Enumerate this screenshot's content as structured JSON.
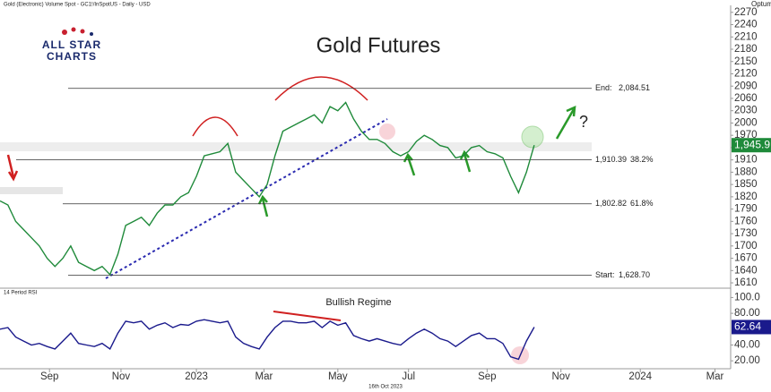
{
  "chart_data": {
    "type": "line",
    "title": "Gold Futures",
    "subtitle": "Gold (Electronic) Volume Spot - GC1!/InSpotUS - Daily - USD",
    "logo": "ALL STAR CHARTS",
    "brand": "Optuma",
    "date_label": "16th Oct 2023",
    "xticks": [
      {
        "value": 6.3,
        "label": "Sep"
      },
      {
        "value": 15.4,
        "label": "Nov"
      },
      {
        "value": 25,
        "label": "2023"
      },
      {
        "value": 33.6,
        "label": "Mar"
      },
      {
        "value": 43,
        "label": "May"
      },
      {
        "value": 52,
        "label": "Jul"
      },
      {
        "value": 62,
        "label": "Sep"
      },
      {
        "value": 71.4,
        "label": "Nov"
      },
      {
        "value": 81.5,
        "label": "2024"
      },
      {
        "value": 91,
        "label": "Mar"
      }
    ],
    "xlim": [
      0,
      93
    ],
    "ylim": [
      1597,
      2287
    ],
    "yticks": [
      1610,
      1640,
      1670,
      1700,
      1730,
      1760,
      1790,
      1820,
      1850,
      1880,
      1910,
      1940,
      1970,
      2000,
      2030,
      2060,
      2090,
      2120,
      2150,
      2180,
      2210,
      2240,
      2270
    ],
    "series": [
      {
        "name": "Gold",
        "color": "#1f8a3a",
        "values": [
          1810,
          1800,
          1760,
          1740,
          1720,
          1700,
          1670,
          1650,
          1670,
          1700,
          1660,
          1650,
          1640,
          1650,
          1630,
          1680,
          1750,
          1760,
          1770,
          1750,
          1780,
          1800,
          1800,
          1820,
          1830,
          1870,
          1920,
          1925,
          1930,
          1950,
          1880,
          1860,
          1840,
          1820,
          1850,
          1920,
          1980,
          1990,
          2000,
          2010,
          2020,
          2000,
          2040,
          2030,
          2050,
          2010,
          1980,
          1960,
          1960,
          1950,
          1930,
          1920,
          1930,
          1955,
          1970,
          1960,
          1945,
          1940,
          1915,
          1920,
          1940,
          1945,
          1930,
          1925,
          1915,
          1870,
          1830,
          1880,
          1945.9
        ],
        "last_label": "1,945.9"
      }
    ],
    "levels": [
      {
        "name": "End:",
        "value": 2084.51,
        "label": "2,084.51"
      },
      {
        "value": 1910.39,
        "label": "1,910.39",
        "ratio": "38.2%"
      },
      {
        "value": 1802.82,
        "label": "1,802.82",
        "ratio": "61.8%"
      },
      {
        "name": "Start:",
        "value": 1628.7,
        "label": "1,628.70"
      }
    ],
    "annotation": "?",
    "rsi": {
      "title": "14 Period RSI",
      "annotation": "Bullish Regime",
      "color": "#1a1a8c",
      "ylim": [
        10,
        105
      ],
      "yticks": [
        {
          "value": 100,
          "label": "100.0"
        },
        {
          "value": 80,
          "label": "80.00"
        },
        {
          "value": 40,
          "label": "40.00"
        },
        {
          "value": 20,
          "label": "20.00"
        }
      ],
      "values": [
        60,
        62,
        50,
        45,
        40,
        42,
        38,
        35,
        45,
        55,
        42,
        40,
        38,
        42,
        35,
        55,
        70,
        68,
        70,
        60,
        65,
        68,
        62,
        66,
        65,
        70,
        72,
        70,
        68,
        70,
        50,
        42,
        38,
        35,
        50,
        62,
        70,
        70,
        68,
        68,
        70,
        62,
        70,
        65,
        68,
        52,
        48,
        45,
        48,
        45,
        42,
        40,
        48,
        55,
        60,
        55,
        48,
        45,
        38,
        45,
        52,
        55,
        48,
        48,
        42,
        25,
        22,
        45,
        62.64
      ],
      "last_label": "62.64"
    }
  }
}
